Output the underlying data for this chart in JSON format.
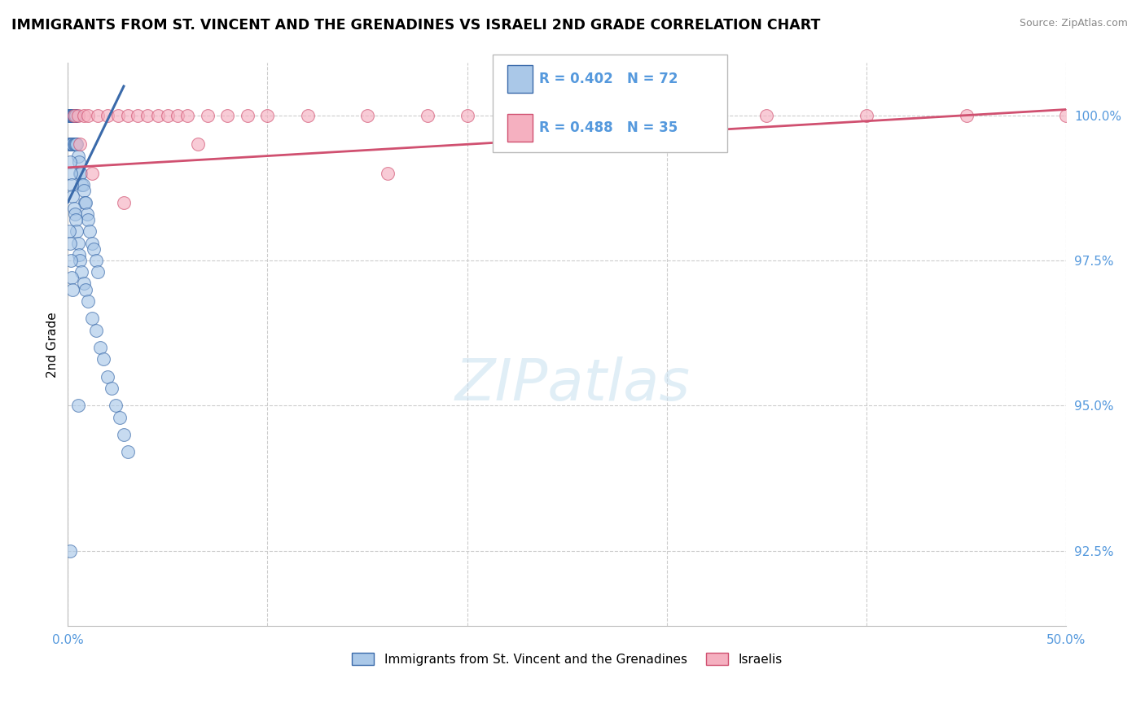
{
  "title": "IMMIGRANTS FROM ST. VINCENT AND THE GRENADINES VS ISRAELI 2ND GRADE CORRELATION CHART",
  "source": "Source: ZipAtlas.com",
  "ylabel": "2nd Grade",
  "yticks": [
    92.5,
    95.0,
    97.5,
    100.0
  ],
  "ytick_labels": [
    "92.5%",
    "95.0%",
    "97.5%",
    "100.0%"
  ],
  "xticks": [
    0,
    10,
    20,
    30,
    40,
    50
  ],
  "xtick_labels": [
    "0.0%",
    "",
    "",
    "",
    "",
    "50.0%"
  ],
  "xmin": 0.0,
  "xmax": 50.0,
  "ymin": 91.2,
  "ymax": 100.9,
  "legend_label1": "Immigrants from St. Vincent and the Grenadines",
  "legend_label2": "Israelis",
  "scatter1_color": "#aac8e8",
  "scatter2_color": "#f5b0c0",
  "line1_color": "#3a6aaa",
  "line2_color": "#d05070",
  "tick_color": "#5599dd",
  "grid_color": "#cccccc",
  "blue_x": [
    0.05,
    0.08,
    0.1,
    0.12,
    0.15,
    0.18,
    0.2,
    0.22,
    0.25,
    0.28,
    0.3,
    0.33,
    0.35,
    0.38,
    0.4,
    0.05,
    0.1,
    0.15,
    0.2,
    0.25,
    0.3,
    0.35,
    0.4,
    0.45,
    0.5,
    0.55,
    0.6,
    0.65,
    0.7,
    0.75,
    0.8,
    0.85,
    0.9,
    0.95,
    1.0,
    1.1,
    1.2,
    1.3,
    1.4,
    1.5,
    0.1,
    0.15,
    0.2,
    0.25,
    0.3,
    0.35,
    0.4,
    0.45,
    0.5,
    0.55,
    0.6,
    0.7,
    0.8,
    0.9,
    1.0,
    1.2,
    1.4,
    1.6,
    1.8,
    2.0,
    2.2,
    2.4,
    2.6,
    2.8,
    3.0,
    0.05,
    0.1,
    0.15,
    0.2,
    0.25,
    0.5,
    0.1
  ],
  "blue_y": [
    100.0,
    100.0,
    100.0,
    100.0,
    100.0,
    100.0,
    100.0,
    100.0,
    100.0,
    100.0,
    100.0,
    100.0,
    100.0,
    100.0,
    100.0,
    99.5,
    99.5,
    99.5,
    99.5,
    99.5,
    99.5,
    99.5,
    99.5,
    99.5,
    99.3,
    99.2,
    99.0,
    99.0,
    98.8,
    98.8,
    98.7,
    98.5,
    98.5,
    98.3,
    98.2,
    98.0,
    97.8,
    97.7,
    97.5,
    97.3,
    99.2,
    99.0,
    98.8,
    98.6,
    98.4,
    98.3,
    98.2,
    98.0,
    97.8,
    97.6,
    97.5,
    97.3,
    97.1,
    97.0,
    96.8,
    96.5,
    96.3,
    96.0,
    95.8,
    95.5,
    95.3,
    95.0,
    94.8,
    94.5,
    94.2,
    98.0,
    97.8,
    97.5,
    97.2,
    97.0,
    95.0,
    92.5
  ],
  "pink_x": [
    0.3,
    0.5,
    0.8,
    1.0,
    1.5,
    2.0,
    2.5,
    3.0,
    3.5,
    4.0,
    4.5,
    5.0,
    5.5,
    6.0,
    7.0,
    8.0,
    9.0,
    10.0,
    12.0,
    15.0,
    18.0,
    20.0,
    25.0,
    30.0,
    35.0,
    40.0,
    45.0,
    50.0,
    22.0,
    28.0,
    0.6,
    1.2,
    2.8,
    6.5,
    16.0
  ],
  "pink_y": [
    100.0,
    100.0,
    100.0,
    100.0,
    100.0,
    100.0,
    100.0,
    100.0,
    100.0,
    100.0,
    100.0,
    100.0,
    100.0,
    100.0,
    100.0,
    100.0,
    100.0,
    100.0,
    100.0,
    100.0,
    100.0,
    100.0,
    100.0,
    100.0,
    100.0,
    100.0,
    100.0,
    100.0,
    100.0,
    100.0,
    99.5,
    99.0,
    98.5,
    99.5,
    99.0
  ],
  "blue_line_x": [
    0.0,
    2.8
  ],
  "blue_line_y": [
    98.5,
    100.5
  ],
  "pink_line_x": [
    0.0,
    50.0
  ],
  "pink_line_y": [
    99.1,
    100.1
  ]
}
